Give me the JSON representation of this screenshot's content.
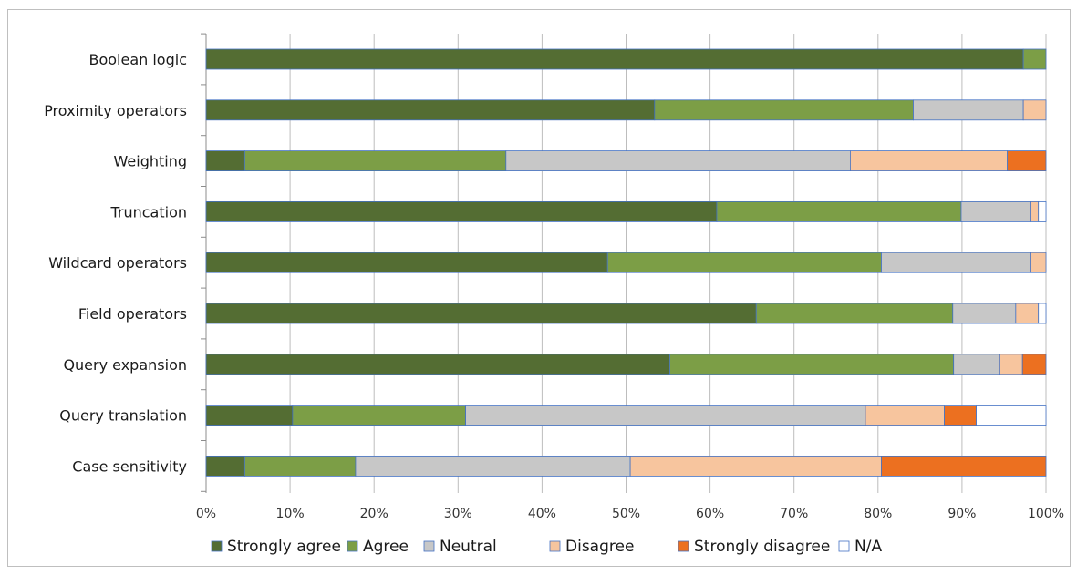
{
  "chart_data": {
    "type": "bar",
    "orientation": "horizontal",
    "stacked": true,
    "percent": true,
    "categories": [
      "Boolean logic",
      "Proximity operators",
      "Weighting",
      "Truncation",
      "Wildcard operators",
      "Field operators",
      "Query expansion",
      "Query translation",
      "Case sensitivity"
    ],
    "series": [
      {
        "name": "Strongly agree",
        "color": "#546d33",
        "values": [
          97.3,
          53.4,
          4.6,
          60.8,
          47.8,
          65.5,
          55.2,
          10.3,
          4.6
        ]
      },
      {
        "name": "Agree",
        "color": "#7c9e46",
        "values": [
          2.7,
          30.8,
          31.1,
          29.1,
          32.6,
          23.4,
          33.8,
          20.6,
          13.2
        ]
      },
      {
        "name": "Neutral",
        "color": "#c7c7c7",
        "values": [
          0,
          13.1,
          41.0,
          8.3,
          17.8,
          7.5,
          5.5,
          47.6,
          32.7
        ]
      },
      {
        "name": "Disagree",
        "color": "#f7c59e",
        "values": [
          0,
          2.7,
          18.7,
          0.9,
          1.8,
          2.7,
          2.7,
          9.4,
          29.9
        ]
      },
      {
        "name": "Strongly disagree",
        "color": "#ec7020",
        "values": [
          0,
          0,
          4.6,
          0,
          0,
          0,
          2.8,
          3.8,
          19.6
        ]
      },
      {
        "name": "N/A",
        "color": "#ffffff",
        "values": [
          0,
          0,
          0,
          0.9,
          0,
          0.9,
          0,
          8.3,
          0
        ]
      }
    ],
    "xlim": [
      0,
      100
    ],
    "xticks": [
      "0%",
      "10%",
      "20%",
      "30%",
      "40%",
      "50%",
      "60%",
      "70%",
      "80%",
      "90%",
      "100%"
    ],
    "grid": true,
    "legend_position": "bottom"
  }
}
